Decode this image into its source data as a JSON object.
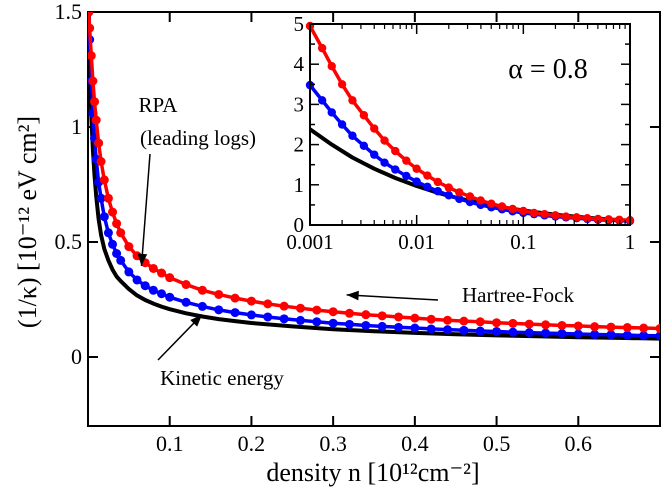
{
  "chart_data": [
    {
      "type": "line",
      "title": "",
      "xlabel": "density n [10¹²cm⁻²]",
      "ylabel": "(1/κ) [10⁻¹² eV cm²]",
      "xlim": [
        0,
        0.7
      ],
      "ylim": [
        -0.3,
        1.5
      ],
      "x_ticks": [
        0.1,
        0.2,
        0.3,
        0.4,
        0.5,
        0.6
      ],
      "x_tick_labels": [
        "0.1",
        "0.2",
        "0.3",
        "0.4",
        "0.5",
        "0.6"
      ],
      "y_ticks": [
        0,
        0.5,
        1,
        1.5
      ],
      "y_tick_labels": [
        "0",
        "0.5",
        "1",
        "1.5"
      ],
      "grid": false,
      "series": [
        {
          "name": "Hartree-Fock",
          "color": "#ff0000",
          "markers": true,
          "x": [
            0.001,
            0.002,
            0.004,
            0.006,
            0.008,
            0.01,
            0.013,
            0.016,
            0.02,
            0.025,
            0.03,
            0.035,
            0.04,
            0.05,
            0.06,
            0.07,
            0.08,
            0.09,
            0.1,
            0.12,
            0.14,
            0.16,
            0.18,
            0.2,
            0.22,
            0.24,
            0.26,
            0.28,
            0.3,
            0.32,
            0.34,
            0.36,
            0.38,
            0.4,
            0.42,
            0.44,
            0.46,
            0.48,
            0.5,
            0.52,
            0.54,
            0.56,
            0.58,
            0.6,
            0.62,
            0.64,
            0.66,
            0.68,
            0.7
          ],
          "y": [
            1.5,
            1.43,
            1.31,
            1.2,
            1.11,
            1.03,
            0.93,
            0.85,
            0.77,
            0.69,
            0.63,
            0.58,
            0.54,
            0.48,
            0.44,
            0.41,
            0.385,
            0.365,
            0.345,
            0.315,
            0.29,
            0.272,
            0.256,
            0.243,
            0.231,
            0.221,
            0.212,
            0.204,
            0.197,
            0.19,
            0.184,
            0.179,
            0.174,
            0.169,
            0.164,
            0.16,
            0.156,
            0.153,
            0.149,
            0.146,
            0.143,
            0.14,
            0.137,
            0.135,
            0.132,
            0.13,
            0.128,
            0.126,
            0.124
          ]
        },
        {
          "name": "RPA (leading logs)",
          "color": "#0000ff",
          "markers": true,
          "x": [
            0.001,
            0.002,
            0.004,
            0.006,
            0.008,
            0.01,
            0.013,
            0.016,
            0.02,
            0.025,
            0.03,
            0.035,
            0.04,
            0.05,
            0.06,
            0.07,
            0.08,
            0.09,
            0.1,
            0.12,
            0.14,
            0.16,
            0.18,
            0.2,
            0.22,
            0.24,
            0.26,
            0.28,
            0.3,
            0.32,
            0.34,
            0.36,
            0.38,
            0.4,
            0.42,
            0.44,
            0.46,
            0.48,
            0.5,
            0.52,
            0.54,
            0.56,
            0.58,
            0.6,
            0.62,
            0.64,
            0.66,
            0.68,
            0.7
          ],
          "y": [
            1.5,
            1.38,
            1.2,
            1.06,
            0.95,
            0.86,
            0.76,
            0.69,
            0.61,
            0.54,
            0.49,
            0.45,
            0.42,
            0.37,
            0.335,
            0.31,
            0.29,
            0.275,
            0.26,
            0.238,
            0.22,
            0.205,
            0.193,
            0.183,
            0.174,
            0.166,
            0.159,
            0.153,
            0.147,
            0.142,
            0.137,
            0.133,
            0.129,
            0.126,
            0.122,
            0.119,
            0.116,
            0.113,
            0.111,
            0.108,
            0.106,
            0.104,
            0.102,
            0.1,
            0.098,
            0.097,
            0.095,
            0.093,
            0.092
          ]
        },
        {
          "name": "Kinetic energy",
          "color": "#000000",
          "markers": false,
          "x": [
            0.001,
            0.002,
            0.004,
            0.006,
            0.008,
            0.01,
            0.013,
            0.016,
            0.02,
            0.025,
            0.03,
            0.035,
            0.04,
            0.05,
            0.06,
            0.07,
            0.08,
            0.09,
            0.1,
            0.12,
            0.14,
            0.16,
            0.18,
            0.2,
            0.25,
            0.3,
            0.35,
            0.4,
            0.45,
            0.5,
            0.55,
            0.6,
            0.65,
            0.7
          ],
          "y": [
            1.5,
            1.28,
            1.05,
            0.9,
            0.79,
            0.7,
            0.6,
            0.53,
            0.47,
            0.42,
            0.38,
            0.35,
            0.33,
            0.295,
            0.268,
            0.248,
            0.232,
            0.219,
            0.208,
            0.19,
            0.176,
            0.165,
            0.156,
            0.148,
            0.133,
            0.121,
            0.112,
            0.105,
            0.099,
            0.094,
            0.09,
            0.086,
            0.083,
            0.08
          ]
        }
      ],
      "annotations": [
        {
          "text": "Hartree-Fock",
          "target": "Hartree-Fock",
          "x": 0.27,
          "y": 0.21
        },
        {
          "line1": "RPA",
          "line2": "(leading logs)",
          "target": "RPA (leading logs)",
          "x": 0.063,
          "y": 0.37
        },
        {
          "text": "Kinetic energy",
          "target": "Kinetic energy",
          "x": 0.12,
          "y": 0.21
        }
      ]
    },
    {
      "type": "line",
      "title": "",
      "xlabel": "",
      "ylabel": "",
      "xscale": "log",
      "xlim": [
        0.001,
        1
      ],
      "ylim": [
        0,
        5
      ],
      "x_ticks": [
        0.001,
        0.01,
        0.1,
        1
      ],
      "x_tick_labels": [
        "0.001",
        "0.01",
        "0.1",
        "1"
      ],
      "y_ticks": [
        0,
        0.5,
        1,
        1.5,
        2,
        2.5,
        3,
        3.5,
        4,
        4.5,
        5
      ],
      "y_tick_labels": [
        "0",
        "1",
        "2",
        "3",
        "4",
        "5"
      ],
      "annotation_text": "α = 0.8",
      "legend": "none",
      "grid": false,
      "series": [
        {
          "name": "Hartree-Fock",
          "color": "#ff0000",
          "markers": true,
          "x": [
            0.001,
            0.0013,
            0.0016,
            0.002,
            0.0025,
            0.0032,
            0.004,
            0.005,
            0.0063,
            0.008,
            0.01,
            0.0126,
            0.0158,
            0.02,
            0.0251,
            0.0316,
            0.0398,
            0.0501,
            0.0631,
            0.0794,
            0.1,
            0.126,
            0.158,
            0.2,
            0.251,
            0.316,
            0.398,
            0.501,
            0.631,
            0.794,
            1
          ],
          "y": [
            4.95,
            4.4,
            3.95,
            3.5,
            3.1,
            2.73,
            2.4,
            2.1,
            1.84,
            1.6,
            1.4,
            1.23,
            1.07,
            0.93,
            0.81,
            0.71,
            0.61,
            0.53,
            0.46,
            0.4,
            0.35,
            0.3,
            0.27,
            0.24,
            0.21,
            0.19,
            0.17,
            0.15,
            0.14,
            0.13,
            0.12
          ]
        },
        {
          "name": "RPA (leading logs)",
          "color": "#0000ff",
          "markers": true,
          "x": [
            0.001,
            0.0013,
            0.0016,
            0.002,
            0.0025,
            0.0032,
            0.004,
            0.005,
            0.0063,
            0.008,
            0.01,
            0.0126,
            0.0158,
            0.02,
            0.0251,
            0.0316,
            0.0398,
            0.0501,
            0.0631,
            0.0794,
            0.1,
            0.126,
            0.158,
            0.2,
            0.251,
            0.316,
            0.398,
            0.501,
            0.631,
            0.794,
            1
          ],
          "y": [
            3.48,
            3.1,
            2.8,
            2.5,
            2.22,
            1.97,
            1.75,
            1.55,
            1.38,
            1.22,
            1.08,
            0.95,
            0.84,
            0.74,
            0.65,
            0.57,
            0.5,
            0.44,
            0.39,
            0.34,
            0.3,
            0.27,
            0.24,
            0.21,
            0.19,
            0.17,
            0.15,
            0.13,
            0.12,
            0.11,
            0.1
          ]
        },
        {
          "name": "Kinetic energy",
          "color": "#000000",
          "markers": false,
          "x": [
            0.001,
            0.0016,
            0.0025,
            0.004,
            0.0063,
            0.01,
            0.0158,
            0.0251,
            0.0398,
            0.0631,
            0.1,
            0.158,
            0.251,
            0.398,
            0.631,
            1
          ],
          "y": [
            2.38,
            2.0,
            1.68,
            1.4,
            1.17,
            0.97,
            0.8,
            0.66,
            0.54,
            0.44,
            0.36,
            0.29,
            0.23,
            0.18,
            0.14,
            0.1
          ]
        }
      ]
    }
  ]
}
